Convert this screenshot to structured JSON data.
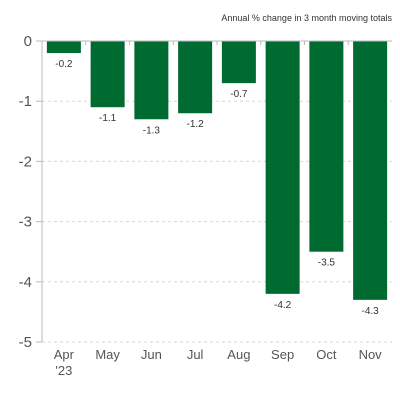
{
  "chart_data": {
    "type": "bar",
    "subtitle": "Annual % change in 3 month moving totals",
    "categories": [
      "Apr",
      "May",
      "Jun",
      "Jul",
      "Aug",
      "Sep",
      "Oct",
      "Nov"
    ],
    "category_sublabels": [
      "'23",
      "",
      "",
      "",
      "",
      "",
      "",
      ""
    ],
    "values": [
      -0.2,
      -1.1,
      -1.3,
      -1.2,
      -0.7,
      -4.2,
      -3.5,
      -4.3
    ],
    "value_labels": [
      "-0.2",
      "-1.1",
      "-1.3",
      "-1.2",
      "-0.7",
      "-4.2",
      "-3.5",
      "-4.3"
    ],
    "yticks": [
      "0",
      "-1",
      "-2",
      "-3",
      "-4",
      "-5"
    ],
    "ylim": [
      -5,
      0
    ],
    "grid": true,
    "bar_color": "#006b30"
  }
}
